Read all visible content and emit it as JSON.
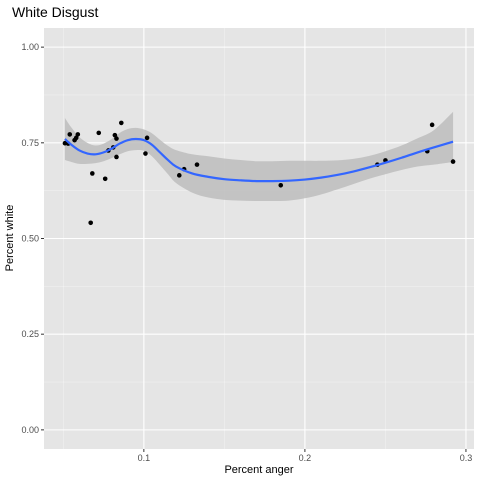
{
  "chart_data": {
    "type": "scatter",
    "title": "White Disgust",
    "xlabel": "Percent anger",
    "ylabel": "Percent white",
    "xlim": [
      0.038,
      0.305
    ],
    "ylim": [
      -0.05,
      1.05
    ],
    "x_ticks": [
      0.1,
      0.2,
      0.3
    ],
    "x_tick_labels": [
      "0.1",
      "0.2",
      "0.3"
    ],
    "y_ticks": [
      0.0,
      0.25,
      0.5,
      0.75,
      1.0
    ],
    "y_tick_labels": [
      "0.00",
      "0.25",
      "0.50",
      "0.75",
      "1.00"
    ],
    "grid": true,
    "colors": {
      "panel_background": "#e5e5e5",
      "grid_major": "#ffffff",
      "points": "#000000",
      "smooth_line": "#3366ff",
      "confidence_band": "#bdbdbd"
    },
    "points": [
      {
        "x": 0.051,
        "y": 0.749
      },
      {
        "x": 0.053,
        "y": 0.748
      },
      {
        "x": 0.054,
        "y": 0.772
      },
      {
        "x": 0.057,
        "y": 0.757
      },
      {
        "x": 0.058,
        "y": 0.763
      },
      {
        "x": 0.059,
        "y": 0.772
      },
      {
        "x": 0.067,
        "y": 0.541
      },
      {
        "x": 0.068,
        "y": 0.67
      },
      {
        "x": 0.072,
        "y": 0.776
      },
      {
        "x": 0.076,
        "y": 0.656
      },
      {
        "x": 0.078,
        "y": 0.73
      },
      {
        "x": 0.081,
        "y": 0.738
      },
      {
        "x": 0.082,
        "y": 0.77
      },
      {
        "x": 0.083,
        "y": 0.761
      },
      {
        "x": 0.083,
        "y": 0.713
      },
      {
        "x": 0.086,
        "y": 0.802
      },
      {
        "x": 0.101,
        "y": 0.722
      },
      {
        "x": 0.102,
        "y": 0.763
      },
      {
        "x": 0.122,
        "y": 0.665
      },
      {
        "x": 0.125,
        "y": 0.681
      },
      {
        "x": 0.133,
        "y": 0.693
      },
      {
        "x": 0.185,
        "y": 0.639
      },
      {
        "x": 0.245,
        "y": 0.693
      },
      {
        "x": 0.25,
        "y": 0.704
      },
      {
        "x": 0.276,
        "y": 0.728
      },
      {
        "x": 0.279,
        "y": 0.797
      },
      {
        "x": 0.292,
        "y": 0.701
      }
    ],
    "smooth": {
      "method": "loess",
      "x": [
        0.051,
        0.055,
        0.06,
        0.065,
        0.07,
        0.075,
        0.08,
        0.085,
        0.09,
        0.095,
        0.1,
        0.105,
        0.11,
        0.115,
        0.12,
        0.13,
        0.14,
        0.15,
        0.16,
        0.17,
        0.18,
        0.19,
        0.2,
        0.21,
        0.22,
        0.23,
        0.24,
        0.25,
        0.26,
        0.27,
        0.28,
        0.292
      ],
      "y": [
        0.76,
        0.745,
        0.73,
        0.722,
        0.72,
        0.725,
        0.735,
        0.748,
        0.757,
        0.76,
        0.757,
        0.745,
        0.725,
        0.705,
        0.688,
        0.67,
        0.661,
        0.655,
        0.652,
        0.65,
        0.65,
        0.651,
        0.654,
        0.659,
        0.666,
        0.675,
        0.686,
        0.698,
        0.711,
        0.725,
        0.738,
        0.753
      ],
      "lower": [
        0.705,
        0.7,
        0.695,
        0.695,
        0.697,
        0.702,
        0.71,
        0.72,
        0.728,
        0.731,
        0.729,
        0.715,
        0.692,
        0.668,
        0.645,
        0.62,
        0.607,
        0.601,
        0.599,
        0.598,
        0.598,
        0.599,
        0.605,
        0.615,
        0.628,
        0.642,
        0.656,
        0.668,
        0.679,
        0.688,
        0.693,
        0.7
      ],
      "upper": [
        0.815,
        0.79,
        0.765,
        0.75,
        0.743,
        0.748,
        0.76,
        0.776,
        0.786,
        0.789,
        0.785,
        0.775,
        0.758,
        0.742,
        0.731,
        0.72,
        0.715,
        0.709,
        0.705,
        0.702,
        0.702,
        0.703,
        0.703,
        0.703,
        0.704,
        0.708,
        0.716,
        0.728,
        0.743,
        0.762,
        0.783,
        0.831
      ]
    }
  }
}
